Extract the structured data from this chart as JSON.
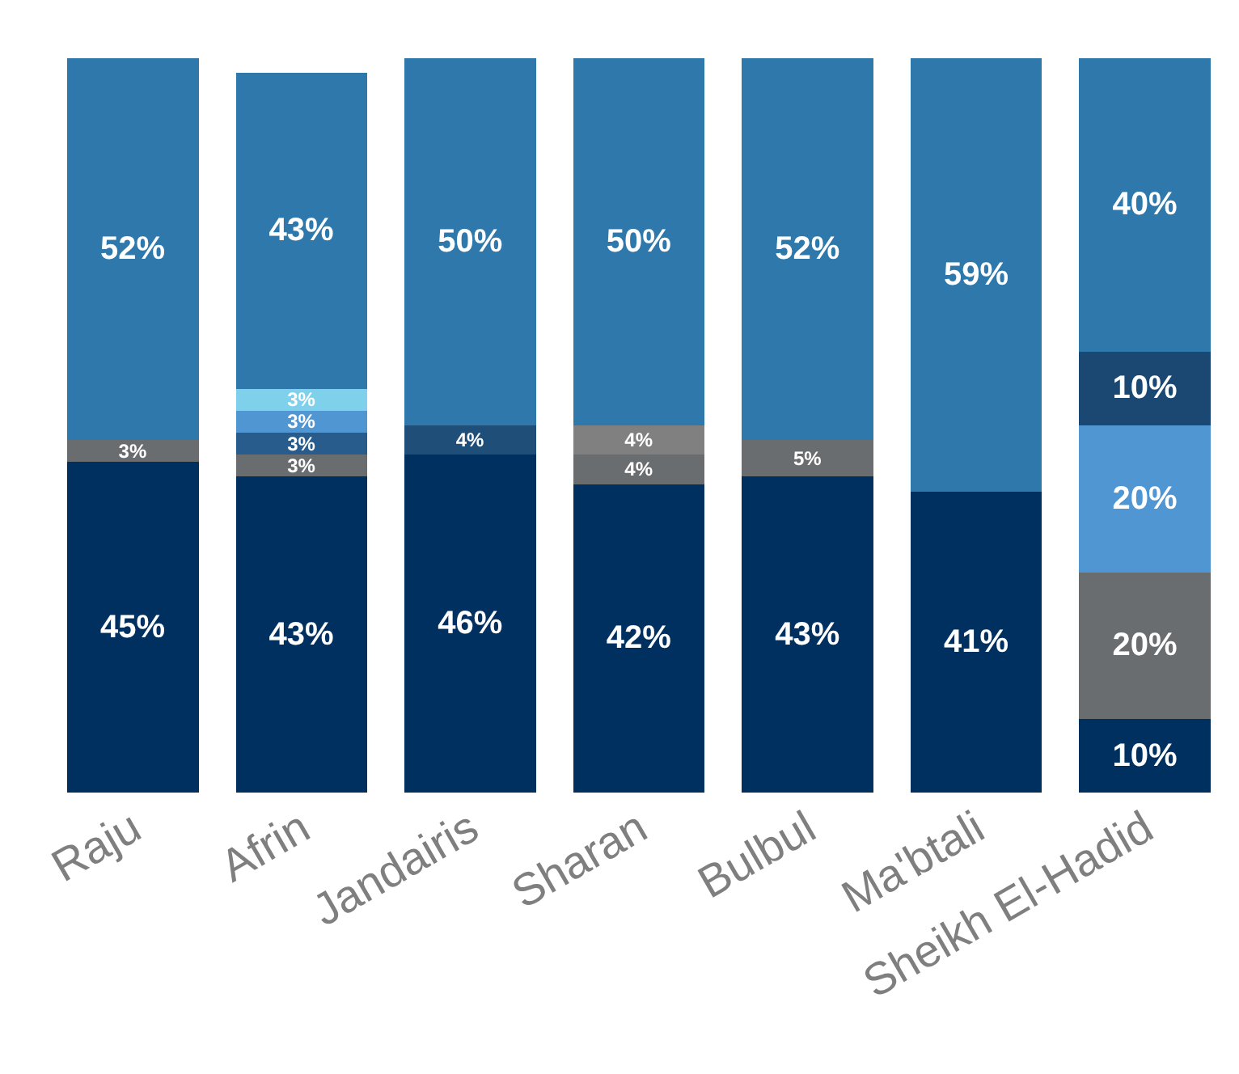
{
  "chart_data": {
    "type": "bar",
    "stacked": true,
    "tick_labels": "x",
    "categories": [
      "Raju",
      "Afrin",
      "Jandairis",
      "Sharan",
      "Bulbul",
      "Ma'btali",
      "Sheikh El-Hadid"
    ],
    "series": [
      {
        "color": "#003060",
        "values": [
          45,
          43,
          46,
          42,
          43,
          41,
          10
        ],
        "value_labels": [
          "45%",
          "43%",
          "46%",
          "42%",
          "43%",
          "41%",
          "10%"
        ]
      },
      {
        "colors": [
          "#6a6d70",
          "#6a6d70",
          "#1f4e79",
          "#6a6d70",
          "#6a6d70",
          null,
          "#6a6d70"
        ],
        "values": [
          3,
          3,
          4,
          4,
          5,
          null,
          20
        ],
        "value_labels": [
          "3%",
          "3%",
          "4%",
          "4%",
          "5%",
          null,
          "20%"
        ]
      },
      {
        "colors": [
          null,
          "#285c8c",
          null,
          "#808080",
          null,
          null,
          "#4f96d2"
        ],
        "values": [
          null,
          3,
          null,
          4,
          null,
          null,
          20
        ],
        "value_labels": [
          null,
          "3%",
          null,
          "4%",
          null,
          null,
          "20%"
        ]
      },
      {
        "colors": [
          null,
          "#4f96d2",
          null,
          null,
          null,
          null,
          "#1a4872"
        ],
        "values": [
          null,
          3,
          null,
          null,
          null,
          null,
          10
        ],
        "value_labels": [
          null,
          "3%",
          null,
          null,
          null,
          null,
          "10%"
        ]
      },
      {
        "colors": [
          null,
          "#7fd0ea",
          null,
          null,
          null,
          null,
          null
        ],
        "values": [
          null,
          3,
          null,
          null,
          null,
          null,
          null
        ],
        "value_labels": [
          null,
          "3%",
          null,
          null,
          null,
          null,
          null
        ]
      },
      {
        "color": "#2e78ab",
        "values": [
          52,
          43,
          50,
          50,
          52,
          59,
          40
        ],
        "value_labels": [
          "52%",
          "43%",
          "50%",
          "50%",
          "52%",
          "59%",
          "40%"
        ]
      }
    ]
  }
}
